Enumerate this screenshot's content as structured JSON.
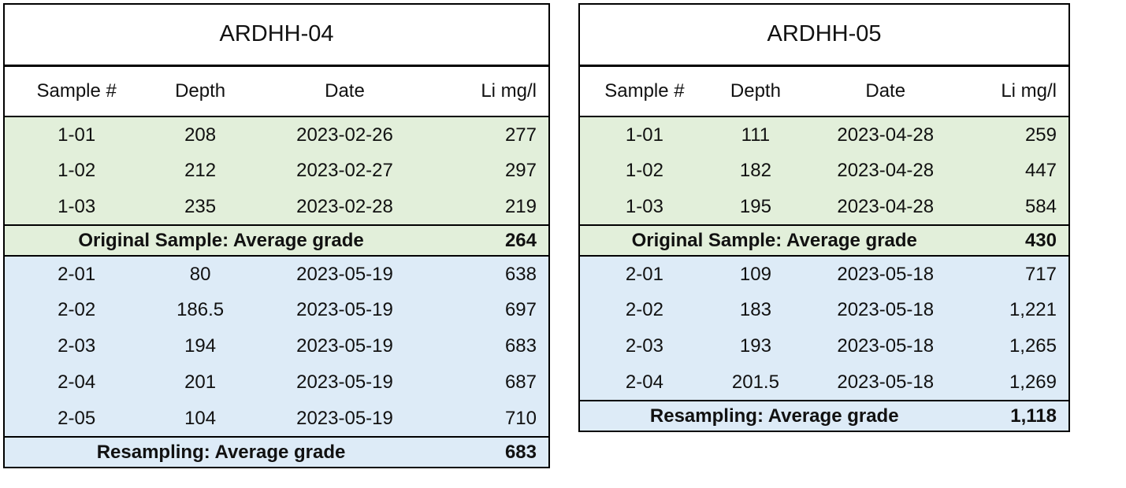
{
  "colors": {
    "original_fill": "#E2EFDA",
    "resampling_fill": "#DDEBF7",
    "border": "#000000",
    "text": "#111111",
    "page_background": "#FFFFFF"
  },
  "chart_data": [
    {
      "type": "table",
      "title": "ARDHH-04",
      "columns": [
        "Sample #",
        "Depth",
        "Date",
        "Li mg/l"
      ],
      "sections": [
        {
          "name": "original",
          "rows": [
            [
              "1-01",
              "208",
              "2023-02-26",
              "277"
            ],
            [
              "1-02",
              "212",
              "2023-02-27",
              "297"
            ],
            [
              "1-03",
              "235",
              "2023-02-28",
              "219"
            ]
          ],
          "summary_label": "Original Sample: Average grade",
          "summary_value": "264"
        },
        {
          "name": "resampling",
          "rows": [
            [
              "2-01",
              "80",
              "2023-05-19",
              "638"
            ],
            [
              "2-02",
              "186.5",
              "2023-05-19",
              "697"
            ],
            [
              "2-03",
              "194",
              "2023-05-19",
              "683"
            ],
            [
              "2-04",
              "201",
              "2023-05-19",
              "687"
            ],
            [
              "2-05",
              "104",
              "2023-05-19",
              "710"
            ]
          ],
          "summary_label": "Resampling: Average grade",
          "summary_value": "683"
        }
      ]
    },
    {
      "type": "table",
      "title": "ARDHH-05",
      "columns": [
        "Sample #",
        "Depth",
        "Date",
        "Li mg/l"
      ],
      "sections": [
        {
          "name": "original",
          "rows": [
            [
              "1-01",
              "111",
              "2023-04-28",
              "259"
            ],
            [
              "1-02",
              "182",
              "2023-04-28",
              "447"
            ],
            [
              "1-03",
              "195",
              "2023-04-28",
              "584"
            ]
          ],
          "summary_label": "Original Sample: Average grade",
          "summary_value": "430"
        },
        {
          "name": "resampling",
          "rows": [
            [
              "2-01",
              "109",
              "2023-05-18",
              "717"
            ],
            [
              "2-02",
              "183",
              "2023-05-18",
              "1,221"
            ],
            [
              "2-03",
              "193",
              "2023-05-18",
              "1,265"
            ],
            [
              "2-04",
              "201.5",
              "2023-05-18",
              "1,269"
            ]
          ],
          "summary_label": "Resampling: Average grade",
          "summary_value": "1,118"
        }
      ]
    }
  ]
}
